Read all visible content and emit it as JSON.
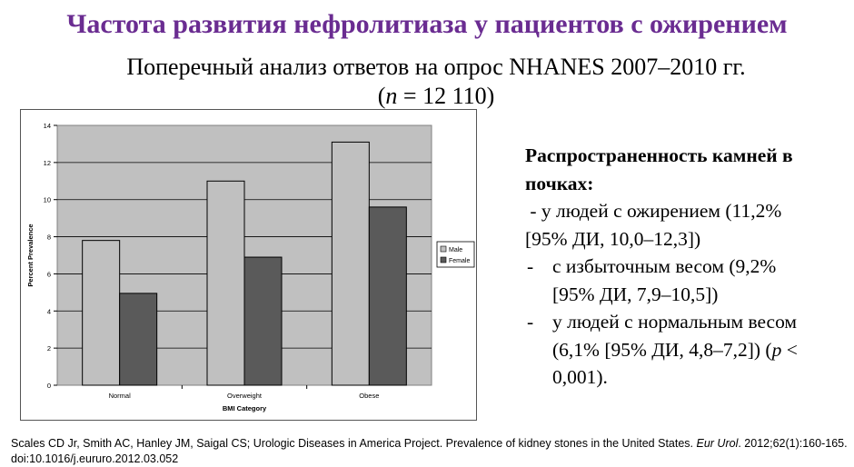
{
  "header": {
    "title": "Частота развития нефролитиаза у пациентов с ожирением",
    "subtitle_line1": "Поперечный анализ ответов на опрос NHANES 2007–2010 гг.",
    "subtitle_n_open": "(",
    "subtitle_n_var": "n",
    "subtitle_n_rest": " = 12 110)"
  },
  "stats": {
    "heading_line1": "Распространенность камней в",
    "heading_line2": "почках:",
    "item1_line1": " - у людей с ожирением (11,2%",
    "item1_line2": "[95% ДИ, 10,0–12,3])",
    "item2_dash": "-",
    "item2_line1": "с избыточным весом (9,2%",
    "item2_line2": "[95% ДИ, 7,9–10,5])",
    "item3_dash": "-",
    "item3_line1": "у людей с нормальным весом",
    "item3_line2a": "(6,1% [95% ДИ, 4,8–7,2]) (",
    "item3_line2_p": "p",
    "item3_line2b": " <",
    "item3_line3": "0,001)."
  },
  "citation": {
    "text_main": "Scales CD Jr, Smith AC, Hanley JM, Saigal CS; Urologic Diseases in America Project. Prevalence of kidney stones in the United States. ",
    "journal": "Eur Urol",
    "text_tail": ". 2012;62(1):160-165.",
    "doi": "doi:10.1016/j.eururo.2012.03.052"
  },
  "chart_data": {
    "type": "bar",
    "categories": [
      "Normal",
      "Overweight",
      "Obese"
    ],
    "series": [
      {
        "name": "Male",
        "values": [
          7.8,
          11.0,
          13.1
        ],
        "color": "#c0c0c0"
      },
      {
        "name": "Female",
        "values": [
          4.95,
          6.9,
          9.6
        ],
        "color": "#5a5a5a"
      }
    ],
    "xlabel": "BMI Category",
    "ylabel": "Percent Prevalence",
    "ylim": [
      0,
      14
    ],
    "yticks": [
      "0",
      "2",
      "4",
      "6",
      "8",
      "10",
      "12",
      "14"
    ],
    "grid": true,
    "legend": "right",
    "plot_background": "#c0c0c0"
  }
}
